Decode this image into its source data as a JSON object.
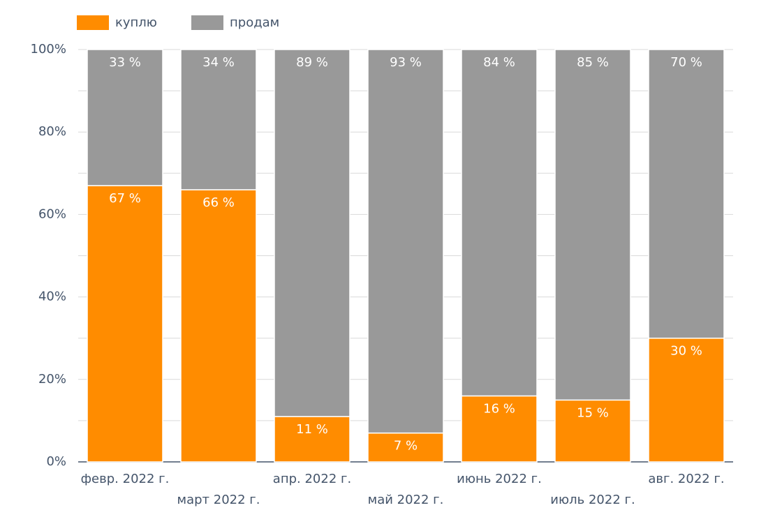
{
  "chart_data": {
    "type": "bar",
    "stacked": true,
    "categories": [
      "февр. 2022 г.",
      "март 2022 г.",
      "апр. 2022 г.",
      "май 2022 г.",
      "июнь 2022 г.",
      "июль 2022 г.",
      "авг. 2022 г."
    ],
    "series": [
      {
        "name": "куплю",
        "color": "#ff8c00",
        "values": [
          67,
          66,
          11,
          7,
          16,
          15,
          30
        ],
        "labels": [
          "67 %",
          "66 %",
          "11 %",
          "7 %",
          "16 %",
          "15 %",
          "30 %"
        ]
      },
      {
        "name": "продам",
        "color": "#999999",
        "values": [
          33,
          34,
          89,
          93,
          84,
          85,
          70
        ],
        "labels": [
          "33 %",
          "34 %",
          "89 %",
          "93 %",
          "84 %",
          "85 %",
          "70 %"
        ]
      }
    ],
    "ylim": [
      0,
      100
    ],
    "yticks": [
      "0%",
      "20%",
      "40%",
      "60%",
      "80%",
      "100%"
    ],
    "title": "",
    "xlabel": "",
    "ylabel": "",
    "grid": true,
    "legend": "top-left"
  }
}
